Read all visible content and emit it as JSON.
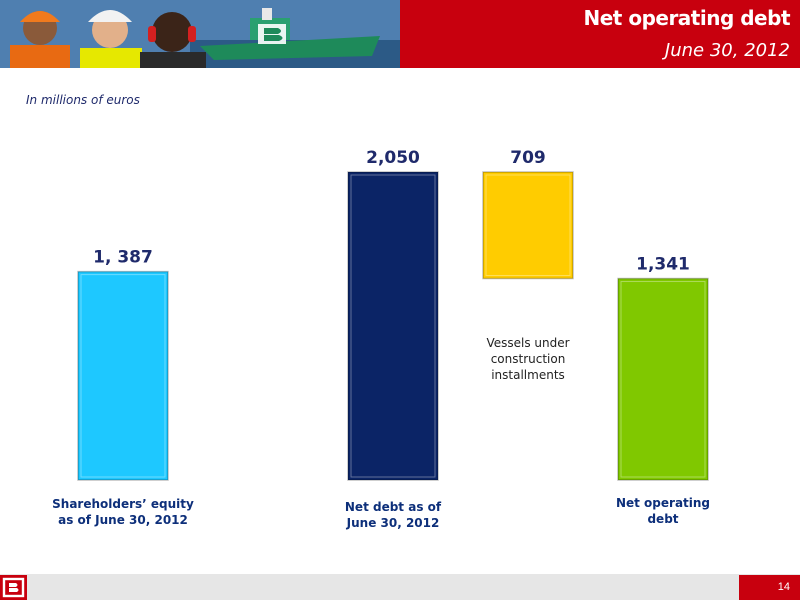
{
  "header": {
    "title": "Net operating debt",
    "subtitle": "June 30, 2012"
  },
  "units_note": "In millions of euros",
  "chart_data": {
    "type": "bar",
    "subtype": "waterfall",
    "categories": [
      "Shareholders’ equity as of June 30, 2012",
      "Net debt as of June 30, 2012",
      "Vessels under construction installments",
      "Net operating debt"
    ],
    "values": [
      1387,
      2050,
      709,
      1341
    ],
    "value_labels": [
      "1, 387",
      "2,050",
      "709",
      "1,341"
    ],
    "category_label_lines": [
      [
        "Shareholders’ equity",
        "as of June 30, 2012"
      ],
      [
        "Net debt as of",
        "June 30, 2012"
      ],
      [
        "Vessels under",
        "construction",
        "installments"
      ],
      [
        "Net operating",
        "debt"
      ]
    ],
    "colors": [
      "#1ec8ff",
      "#0b2466",
      "#ffcc00",
      "#80c800"
    ],
    "category_label_colors": [
      "#0d2f7a",
      "#0d2f7a",
      "#222222",
      "#0d2f7a"
    ],
    "value_label_color": "#1f2a6b",
    "ylim": [
      0,
      2050
    ],
    "grid": false,
    "legend": "none",
    "title": "",
    "xlabel": "",
    "ylabel": ""
  },
  "footer": {
    "page_number": "14",
    "logo_letter": "B"
  }
}
